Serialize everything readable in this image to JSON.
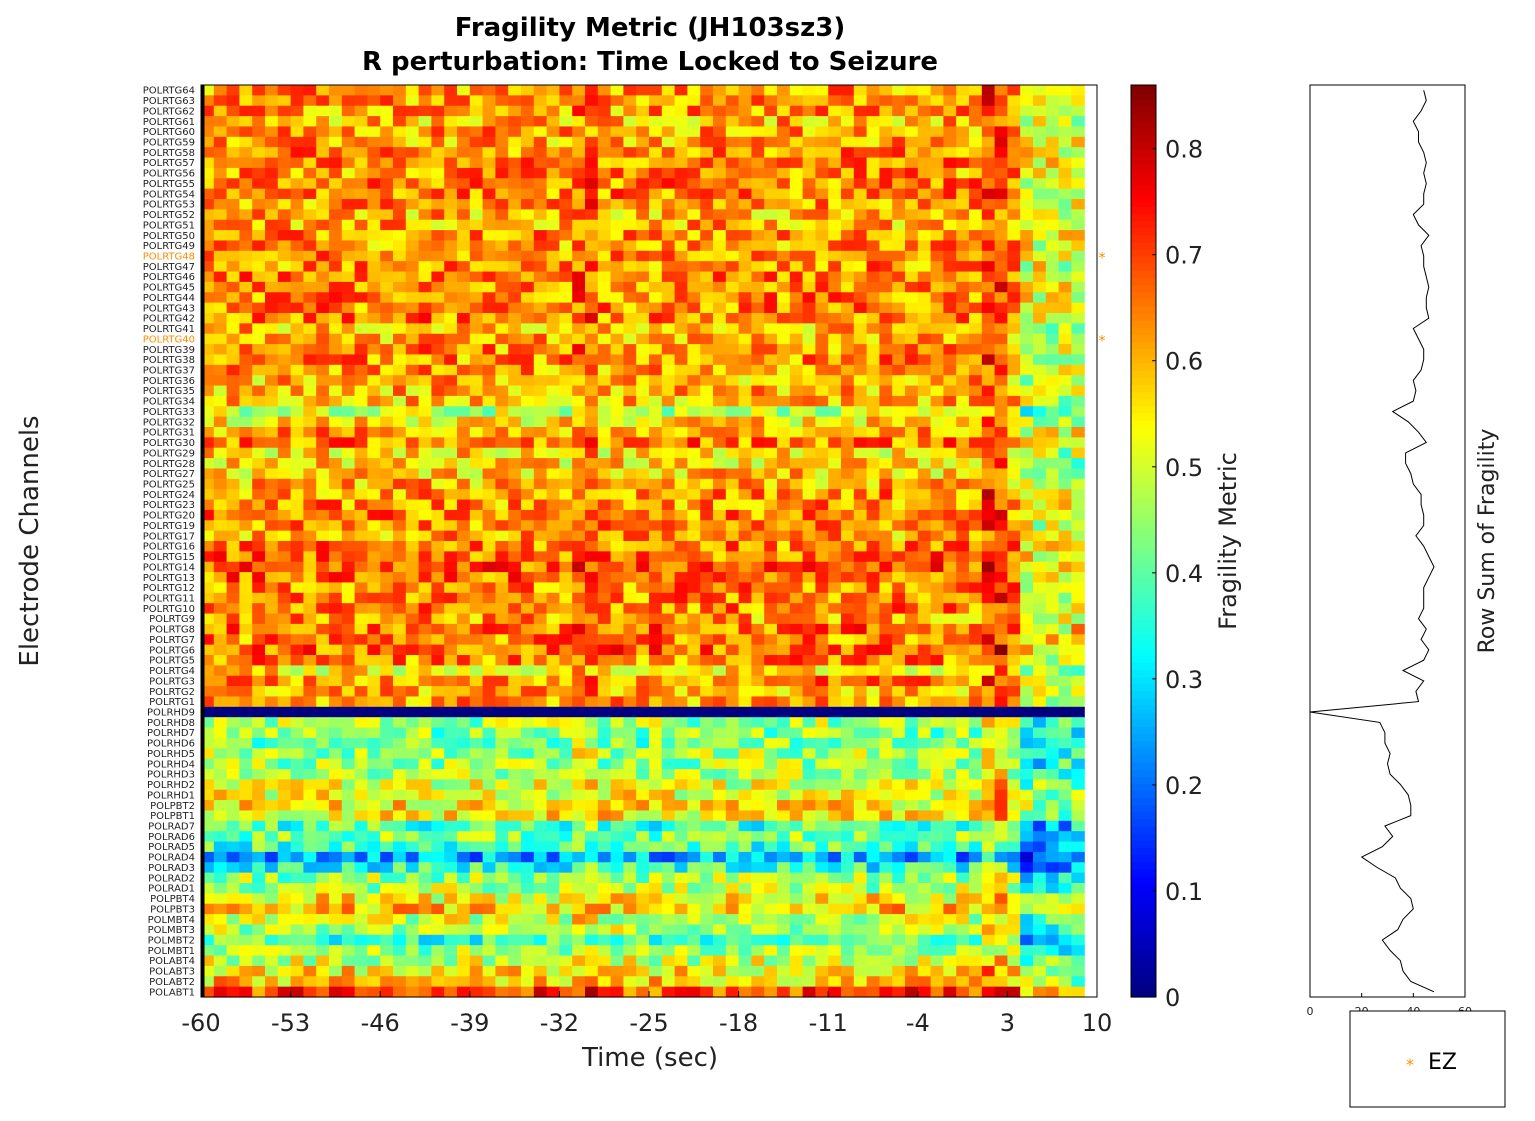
{
  "title_line1": "Fragility Metric (JH103sz3)",
  "title_line2": "R perturbation:  Time Locked to Seizure",
  "chart_data": [
    {
      "type": "heatmap",
      "title": "Fragility Metric (JH103sz3) R perturbation:  Time Locked to Seizure",
      "xlabel": "Time (sec)",
      "ylabel": "Electrode Channels",
      "xlim": [
        -60,
        10
      ],
      "x_ticks": [
        -60,
        -53,
        -46,
        -39,
        -32,
        -25,
        -18,
        -11,
        -4,
        3,
        10
      ],
      "x_tick_labels": [
        "-60",
        "-53",
        "-46",
        "-39",
        "-32",
        "-25",
        "-18",
        "-11",
        "-4",
        "3",
        "10"
      ],
      "seizure_onset_x": -60,
      "colormap": "jet",
      "clim": [
        0,
        0.86
      ],
      "colorbar_label": "Fragility Metric",
      "colorbar_ticks": [
        0,
        0.1,
        0.2,
        0.3,
        0.4,
        0.5,
        0.6,
        0.7,
        0.8
      ],
      "colorbar_tick_labels": [
        "0",
        "0.1",
        "0.2",
        "0.3",
        "0.4",
        "0.5",
        "0.6",
        "0.7",
        "0.8"
      ],
      "channels": [
        "POLRTG64",
        "POLRTG63",
        "POLRTG62",
        "POLRTG61",
        "POLRTG60",
        "POLRTG59",
        "POLRTG58",
        "POLRTG57",
        "POLRTG56",
        "POLRTG55",
        "POLRTG54",
        "POLRTG53",
        "POLRTG52",
        "POLRTG51",
        "POLRTG50",
        "POLRTG49",
        "POLRTG48",
        "POLRTG47",
        "POLRTG46",
        "POLRTG45",
        "POLRTG44",
        "POLRTG43",
        "POLRTG42",
        "POLRTG41",
        "POLRTG40",
        "POLRTG39",
        "POLRTG38",
        "POLRTG37",
        "POLRTG36",
        "POLRTG35",
        "POLRTG34",
        "POLRTG33",
        "POLRTG32",
        "POLRTG31",
        "POLRTG30",
        "POLRTG29",
        "POLRTG28",
        "POLRTG27",
        "POLRTG25",
        "POLRTG24",
        "POLRTG23",
        "POLRTG20",
        "POLRTG19",
        "POLRTG17",
        "POLRTG16",
        "POLRTG15",
        "POLRTG14",
        "POLRTG13",
        "POLRTG12",
        "POLRTG11",
        "POLRTG10",
        "POLRTG9",
        "POLRTG8",
        "POLRTG7",
        "POLRTG6",
        "POLRTG5",
        "POLRTG4",
        "POLRTG3",
        "POLRTG2",
        "POLRTG1",
        "POLRHD9",
        "POLRHD8",
        "POLRHD7",
        "POLRHD6",
        "POLRHD5",
        "POLRHD4",
        "POLRHD3",
        "POLRHD2",
        "POLRHD1",
        "POLPBT2",
        "POLPBT1",
        "POLRAD7",
        "POLRAD6",
        "POLRAD5",
        "POLRAD4",
        "POLRAD3",
        "POLRAD2",
        "POLRAD1",
        "POLPBT4",
        "POLPBT3",
        "POLMBT4",
        "POLMBT3",
        "POLMBT2",
        "POLMBT1",
        "POLABT4",
        "POLABT3",
        "POLABT2",
        "POLABT1"
      ],
      "ez_channels": [
        "POLRTG48",
        "POLRTG40"
      ],
      "ez_color": "#FF8C00",
      "row_level_estimate": {
        "POLRTG64": 0.63,
        "POLRTG63": 0.63,
        "POLRTG62": 0.62,
        "POLRTG61": 0.6,
        "POLRTG60": 0.62,
        "POLRTG59": 0.61,
        "POLRTG58": 0.64,
        "POLRTG57": 0.64,
        "POLRTG56": 0.63,
        "POLRTG55": 0.64,
        "POLRTG54": 0.64,
        "POLRTG53": 0.63,
        "POLRTG52": 0.6,
        "POLRTG51": 0.61,
        "POLRTG50": 0.64,
        "POLRTG49": 0.62,
        "POLRTG48": 0.63,
        "POLRTG47": 0.63,
        "POLRTG46": 0.64,
        "POLRTG45": 0.65,
        "POLRTG44": 0.64,
        "POLRTG43": 0.64,
        "POLRTG42": 0.65,
        "POLRTG41": 0.6,
        "POLRTG40": 0.61,
        "POLRTG39": 0.63,
        "POLRTG38": 0.63,
        "POLRTG37": 0.62,
        "POLRTG36": 0.6,
        "POLRTG35": 0.6,
        "POLRTG34": 0.59,
        "POLRTG33": 0.48,
        "POLRTG32": 0.56,
        "POLRTG31": 0.62,
        "POLRTG30": 0.65,
        "POLRTG29": 0.57,
        "POLRTG28": 0.57,
        "POLRTG27": 0.58,
        "POLRTG25": 0.6,
        "POLRTG24": 0.63,
        "POLRTG23": 0.63,
        "POLRTG20": 0.64,
        "POLRTG19": 0.63,
        "POLRTG17": 0.61,
        "POLRTG16": 0.64,
        "POLRTG15": 0.66,
        "POLRTG14": 0.68,
        "POLRTG13": 0.66,
        "POLRTG12": 0.64,
        "POLRTG11": 0.64,
        "POLRTG10": 0.64,
        "POLRTG9": 0.62,
        "POLRTG8": 0.66,
        "POLRTG7": 0.64,
        "POLRTG6": 0.67,
        "POLRTG5": 0.64,
        "POLRTG4": 0.55,
        "POLRTG3": 0.64,
        "POLRTG2": 0.6,
        "POLRTG1": 0.62,
        "POLRHD9": 0.0,
        "POLRHD8": 0.46,
        "POLRHD7": 0.43,
        "POLRHD6": 0.42,
        "POLRHD5": 0.46,
        "POLRHD4": 0.45,
        "POLRHD3": 0.45,
        "POLRHD2": 0.5,
        "POLRHD1": 0.53,
        "POLPBT2": 0.55,
        "POLPBT1": 0.55,
        "POLRAD7": 0.38,
        "POLRAD6": 0.43,
        "POLRAD5": 0.38,
        "POLRAD4": 0.25,
        "POLRAD3": 0.35,
        "POLRAD2": 0.45,
        "POLRAD1": 0.47,
        "POLPBT4": 0.54,
        "POLPBT3": 0.58,
        "POLMBT4": 0.5,
        "POLMBT3": 0.48,
        "POLMBT2": 0.38,
        "POLMBT1": 0.45,
        "POLABT4": 0.5,
        "POLABT3": 0.55,
        "POLABT2": 0.58,
        "POLABT1": 0.7
      },
      "late_column_drop_from_x": 4,
      "bright_column_x": [
        -30,
        2
      ]
    },
    {
      "type": "line",
      "ylabel": "Row Sum of Fragility",
      "xlim": [
        0,
        60
      ],
      "x_ticks": [
        0,
        20,
        40,
        60
      ],
      "x_tick_labels": [
        "0",
        "20",
        "40",
        "60"
      ],
      "description_values": "row sums follow channel order top to bottom",
      "values": [
        44,
        45,
        43,
        40,
        42,
        42,
        44,
        45,
        44,
        45,
        44,
        44,
        40,
        42,
        46,
        43,
        44,
        44,
        45,
        46,
        45,
        45,
        46,
        40,
        42,
        44,
        44,
        43,
        40,
        41,
        40,
        32,
        38,
        42,
        45,
        37,
        37,
        39,
        40,
        43,
        43,
        44,
        44,
        41,
        44,
        46,
        48,
        46,
        44,
        44,
        44,
        42,
        45,
        43,
        46,
        44,
        36,
        44,
        41,
        42,
        0,
        27,
        29,
        29,
        31,
        30,
        31,
        35,
        38,
        39,
        39,
        29,
        32,
        28,
        20,
        26,
        33,
        35,
        39,
        40,
        36,
        34,
        28,
        31,
        35,
        36,
        39,
        48
      ]
    }
  ],
  "legend": {
    "marker": "*",
    "label": "EZ",
    "marker_color": "#FF8C00"
  }
}
